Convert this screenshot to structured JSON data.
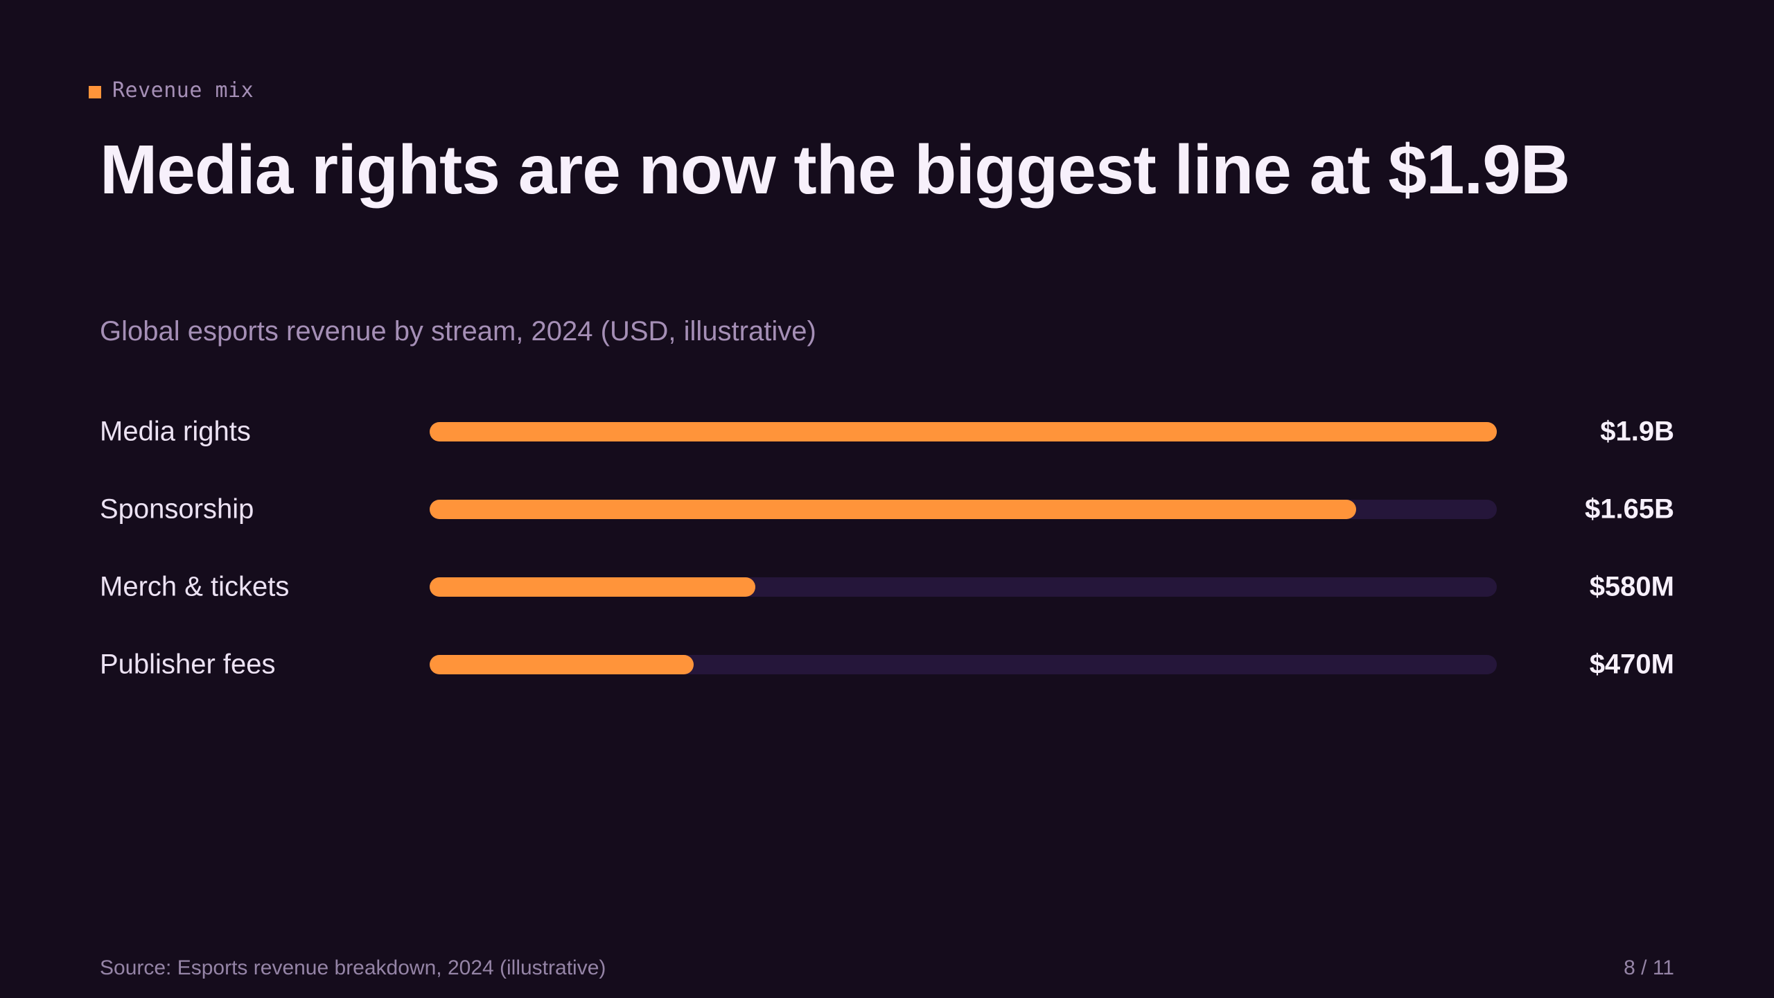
{
  "eyebrow": {
    "label": "Revenue mix",
    "marker_color": "#ff943a"
  },
  "title": "Media rights are now the biggest line at $1.9B",
  "subtitle": "Global esports revenue by stream, 2024 (USD, illustrative)",
  "footer": {
    "source": "Source: Esports revenue breakdown, 2024 (illustrative)",
    "page": "8 / 11"
  },
  "colors": {
    "background": "#150c1c",
    "bar": "#ff943a",
    "track": "#25163a",
    "muted_text": "#a58fb6"
  },
  "chart_data": {
    "type": "bar",
    "orientation": "horizontal",
    "title": "",
    "xlabel": "",
    "ylabel": "",
    "grid": false,
    "xlim": [
      0,
      1900
    ],
    "unit": "USD millions",
    "categories": [
      "Media rights",
      "Sponsorship",
      "Merch & tickets",
      "Publisher fees"
    ],
    "values": [
      1900,
      1650,
      580,
      470
    ],
    "value_labels": [
      "$1.9B",
      "$1.65B",
      "$580M",
      "$470M"
    ]
  }
}
